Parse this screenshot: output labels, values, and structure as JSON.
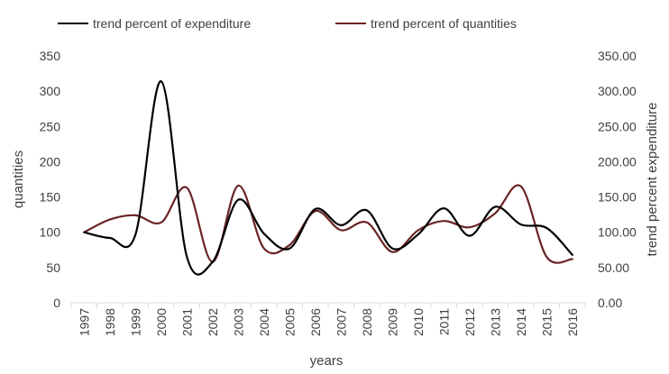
{
  "chart_data": {
    "type": "line",
    "title": "",
    "xlabel": "years",
    "ylabel_left": "quantities",
    "ylabel_right": "trend percent expenditure",
    "left_axis": {
      "min": 0,
      "max": 350,
      "step": 50,
      "ticks": [
        "0",
        "50",
        "100",
        "150",
        "200",
        "250",
        "300",
        "350"
      ]
    },
    "right_axis": {
      "min": 0,
      "max": 350,
      "step": 50,
      "ticks": [
        "0.00",
        "50.00",
        "100.00",
        "150.00",
        "200.00",
        "250.00",
        "300.00",
        "350.00"
      ]
    },
    "categories": [
      "1997",
      "1998",
      "1999",
      "2000",
      "2001",
      "2002",
      "2003",
      "2004",
      "2005",
      "2006",
      "2007",
      "2008",
      "2009",
      "2010",
      "2011",
      "2012",
      "2013",
      "2014",
      "2015",
      "2016"
    ],
    "series": [
      {
        "name": "trend percent of expenditure",
        "color": "#000000",
        "values": [
          100,
          92,
          97,
          314,
          65,
          58,
          146,
          98,
          77,
          133,
          110,
          131,
          77,
          97,
          134,
          95,
          136,
          111,
          106,
          68
        ]
      },
      {
        "name": "trend percent of quantities",
        "color": "#6b2424",
        "values": [
          100,
          118,
          124,
          114,
          163,
          58,
          166,
          77,
          82,
          130,
          103,
          114,
          72,
          103,
          116,
          107,
          127,
          165,
          65,
          62
        ]
      }
    ],
    "legend_position": "top",
    "grid": false
  }
}
